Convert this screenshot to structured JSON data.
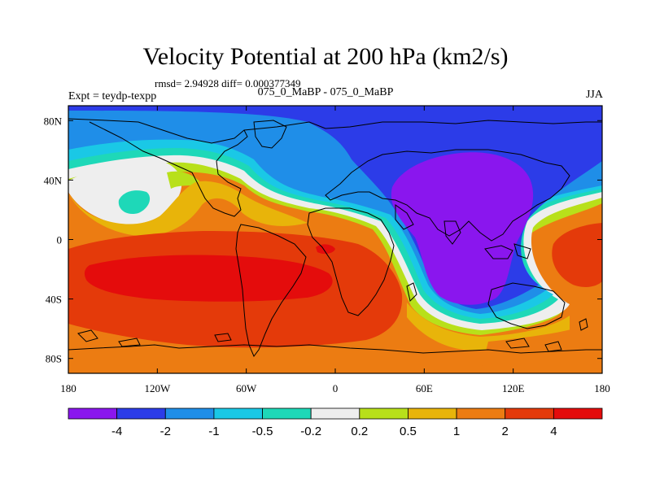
{
  "title": "Velocity Potential at 200 hPa (km2/s)",
  "stats": "rmsd= 2.94928 diff= 0.000377349",
  "expt": "Expt = teydp-texpp",
  "runs": "075_0_MaBP - 075_0_MaBP",
  "season": "JJA",
  "chart_data": {
    "type": "heatmap",
    "title": "Velocity Potential at 200 hPa (km2/s)",
    "projection": "cylindrical equidistant, global",
    "x_range": [
      -180,
      180
    ],
    "y_range": [
      -90,
      90
    ],
    "x_ticks": [
      {
        "value": -180,
        "label": "180"
      },
      {
        "value": -120,
        "label": "120W"
      },
      {
        "value": -60,
        "label": "60W"
      },
      {
        "value": 0,
        "label": "0"
      },
      {
        "value": 60,
        "label": "60E"
      },
      {
        "value": 120,
        "label": "120E"
      },
      {
        "value": 180,
        "label": "180"
      }
    ],
    "y_ticks": [
      {
        "value": 80,
        "label": "80N"
      },
      {
        "value": 40,
        "label": "40N"
      },
      {
        "value": 0,
        "label": "0"
      },
      {
        "value": -40,
        "label": "40S"
      },
      {
        "value": -80,
        "label": "80S"
      }
    ],
    "colorbar": {
      "levels": [
        "-4",
        "-2",
        "-1",
        "-0.5",
        "-0.2",
        "0.2",
        "0.5",
        "1",
        "2",
        "4"
      ],
      "colors": [
        "#8a16ee",
        "#2c3ce8",
        "#1f8ee8",
        "#1ac8e6",
        "#1ed8b8",
        "#eeeeee",
        "#b8e01a",
        "#e8b40a",
        "#ec7c12",
        "#e43a0a",
        "#e40c0c"
      ]
    },
    "features": [
      {
        "name": "upper-level divergence core (Asian monsoon / west Pacific)",
        "lon": 100,
        "lat": 25,
        "value_class": "< -4"
      },
      {
        "name": "convergence core (South Pacific / southern Atlantic)",
        "lon": -90,
        "lat": -25,
        "value_class": "> 4"
      },
      {
        "name": "convergence core (east Pacific)",
        "lon": 170,
        "lat": -5,
        "value_class": "2 to 4"
      }
    ]
  }
}
